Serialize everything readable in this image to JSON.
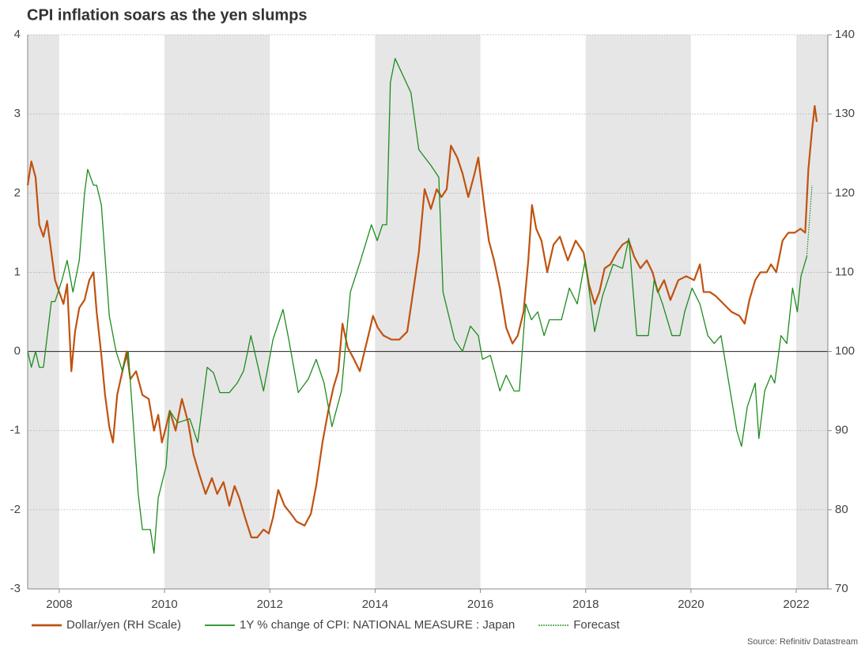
{
  "chart_data": {
    "type": "line",
    "title": "CPI inflation soars as the yen slumps",
    "source": "Source: Refinitiv Datastream",
    "xlim": [
      2007.4,
      2022.6
    ],
    "xticks": [
      2008,
      2010,
      2012,
      2014,
      2016,
      2018,
      2020,
      2022
    ],
    "ylim": [
      -3,
      4
    ],
    "yticks": [
      -3,
      -2,
      -1,
      0,
      1,
      2,
      3,
      4
    ],
    "y2lim": [
      70,
      140
    ],
    "y2ticks": [
      70,
      80,
      90,
      100,
      110,
      120,
      130,
      140
    ],
    "grid": true,
    "shading": true,
    "legend": "bottom",
    "series": [
      {
        "name": "Dollar/yen (RH Scale)",
        "color": "#c0520f",
        "axis": "y2",
        "style": "solid",
        "width": 2.2,
        "x": [
          2007.4,
          2007.47,
          2007.55,
          2007.62,
          2007.7,
          2007.77,
          2007.85,
          2007.92,
          2008.0,
          2008.08,
          2008.15,
          2008.23,
          2008.3,
          2008.38,
          2008.48,
          2008.57,
          2008.65,
          2008.71,
          2008.8,
          2008.87,
          2008.95,
          2009.02,
          2009.1,
          2009.2,
          2009.28,
          2009.35,
          2009.46,
          2009.58,
          2009.7,
          2009.8,
          2009.88,
          2009.95,
          2010.03,
          2010.1,
          2010.21,
          2010.33,
          2010.45,
          2010.55,
          2010.66,
          2010.78,
          2010.9,
          2011.0,
          2011.12,
          2011.23,
          2011.33,
          2011.42,
          2011.53,
          2011.65,
          2011.76,
          2011.88,
          2011.98,
          2012.06,
          2012.16,
          2012.28,
          2012.4,
          2012.51,
          2012.66,
          2012.78,
          2012.88,
          2013.0,
          2013.11,
          2013.21,
          2013.3,
          2013.38,
          2013.48,
          2013.6,
          2013.71,
          2013.78,
          2013.89,
          2013.96,
          2014.05,
          2014.16,
          2014.31,
          2014.46,
          2014.61,
          2014.71,
          2014.83,
          2014.94,
          2015.06,
          2015.17,
          2015.26,
          2015.36,
          2015.44,
          2015.56,
          2015.66,
          2015.77,
          2015.89,
          2015.96,
          2016.07,
          2016.16,
          2016.26,
          2016.37,
          2016.49,
          2016.61,
          2016.71,
          2016.82,
          2016.91,
          2016.98,
          2017.06,
          2017.16,
          2017.27,
          2017.39,
          2017.51,
          2017.66,
          2017.81,
          2017.96,
          2018.06,
          2018.17,
          2018.26,
          2018.36,
          2018.47,
          2018.59,
          2018.7,
          2018.82,
          2018.92,
          2019.04,
          2019.16,
          2019.27,
          2019.37,
          2019.49,
          2019.61,
          2019.76,
          2019.91,
          2020.06,
          2020.17,
          2020.24,
          2020.36,
          2020.47,
          2020.62,
          2020.77,
          2020.92,
          2021.02,
          2021.11,
          2021.22,
          2021.32,
          2021.44,
          2021.52,
          2021.62,
          2021.74,
          2021.85,
          2021.97,
          2022.08,
          2022.17,
          2022.23,
          2022.3,
          2022.35,
          2022.39
        ],
        "values": [
          121,
          124,
          122,
          116,
          114.5,
          116.5,
          112.5,
          109,
          107.5,
          106,
          108.5,
          97.5,
          102.5,
          105.5,
          106.5,
          109,
          110,
          105,
          99.5,
          94.5,
          90.5,
          88.5,
          94.5,
          97.5,
          100,
          96.5,
          97.5,
          94.5,
          94,
          90,
          92,
          88.5,
          90.5,
          92.5,
          90,
          94,
          91,
          87,
          84.5,
          82,
          84,
          82,
          83.5,
          80.5,
          83,
          81.5,
          79,
          76.5,
          76.5,
          77.5,
          77,
          79,
          82.5,
          80.5,
          79.5,
          78.5,
          78,
          79.5,
          83,
          88.5,
          92.5,
          95.5,
          97.5,
          103.5,
          100.5,
          99,
          97.5,
          99.5,
          102.5,
          104.5,
          103,
          102,
          101.5,
          101.5,
          102.5,
          107,
          112.5,
          120.5,
          118,
          120.5,
          119.5,
          120.5,
          126,
          124.5,
          122.5,
          119.5,
          122.5,
          124.5,
          118.5,
          114,
          111.5,
          108,
          103,
          101,
          102,
          105,
          111.5,
          118.5,
          115.5,
          114,
          110,
          113.5,
          114.5,
          111.5,
          114,
          112.5,
          108.5,
          106,
          107.5,
          110.5,
          111,
          112.5,
          113.5,
          114,
          112,
          110.5,
          111.5,
          110,
          107.5,
          109,
          106.5,
          109,
          109.5,
          109,
          111,
          107.5,
          107.5,
          107,
          106,
          105,
          104.5,
          103.5,
          106.5,
          109,
          110,
          110,
          111,
          110,
          114,
          115,
          115,
          115.5,
          115,
          123,
          128,
          131,
          129
        ]
      },
      {
        "name": "1Y % change of CPI: NATIONAL MEASURE : Japan",
        "color": "#1e8c1e",
        "axis": "y",
        "style": "solid",
        "width": 1.3,
        "x": [
          2007.4,
          2007.47,
          2007.55,
          2007.62,
          2007.7,
          2007.85,
          2007.92,
          2008.05,
          2008.15,
          2008.26,
          2008.38,
          2008.48,
          2008.54,
          2008.65,
          2008.71,
          2008.8,
          2008.95,
          2009.08,
          2009.2,
          2009.31,
          2009.4,
          2009.5,
          2009.58,
          2009.73,
          2009.8,
          2009.88,
          2010.03,
          2010.1,
          2010.25,
          2010.48,
          2010.63,
          2010.81,
          2010.93,
          2011.05,
          2011.23,
          2011.38,
          2011.5,
          2011.58,
          2011.64,
          2011.71,
          2011.88,
          2012.06,
          2012.25,
          2012.36,
          2012.54,
          2012.73,
          2012.88,
          2013.03,
          2013.18,
          2013.36,
          2013.53,
          2013.71,
          2013.93,
          2014.04,
          2014.14,
          2014.22,
          2014.29,
          2014.38,
          2014.68,
          2014.83,
          2015.06,
          2015.21,
          2015.29,
          2015.51,
          2015.66,
          2015.81,
          2015.96,
          2016.04,
          2016.19,
          2016.37,
          2016.49,
          2016.64,
          2016.74,
          2016.86,
          2016.97,
          2017.09,
          2017.21,
          2017.31,
          2017.54,
          2017.69,
          2017.84,
          2017.99,
          2018.17,
          2018.32,
          2018.52,
          2018.7,
          2018.82,
          2018.97,
          2019.19,
          2019.3,
          2019.46,
          2019.64,
          2019.79,
          2019.88,
          2020.02,
          2020.17,
          2020.32,
          2020.44,
          2020.57,
          2020.72,
          2020.87,
          2020.96,
          2021.07,
          2021.22,
          2021.29,
          2021.4,
          2021.52,
          2021.59,
          2021.71,
          2021.82,
          2021.93,
          2022.02,
          2022.09,
          2022.2
        ],
        "values": [
          0,
          -0.2,
          0,
          -0.2,
          -0.2,
          0.63,
          0.63,
          0.9,
          1.15,
          0.75,
          1.15,
          2.0,
          2.3,
          2.1,
          2.1,
          1.85,
          0.45,
          0,
          -0.25,
          0,
          -0.85,
          -1.8,
          -2.25,
          -2.25,
          -2.55,
          -1.85,
          -1.45,
          -0.75,
          -0.9,
          -0.85,
          -1.15,
          -0.2,
          -0.27,
          -0.52,
          -0.52,
          -0.4,
          -0.25,
          0,
          0.2,
          0,
          -0.5,
          0.15,
          0.53,
          0.15,
          -0.52,
          -0.35,
          -0.1,
          -0.4,
          -0.95,
          -0.5,
          0.75,
          1.12,
          1.6,
          1.4,
          1.6,
          1.6,
          3.4,
          3.7,
          3.27,
          2.55,
          2.35,
          2.2,
          0.75,
          0.15,
          0,
          0.32,
          0.2,
          -0.1,
          -0.05,
          -0.5,
          -0.3,
          -0.5,
          -0.5,
          0.6,
          0.4,
          0.5,
          0.2,
          0.4,
          0.4,
          0.8,
          0.6,
          1.15,
          0.25,
          0.7,
          1.1,
          1.05,
          1.43,
          0.2,
          0.2,
          0.9,
          0.6,
          0.2,
          0.2,
          0.5,
          0.8,
          0.6,
          0.2,
          0.1,
          0.2,
          -0.4,
          -1.0,
          -1.2,
          -0.7,
          -0.4,
          -1.1,
          -0.5,
          -0.3,
          -0.4,
          0.2,
          0.1,
          0.8,
          0.5,
          0.95,
          1.2
        ]
      },
      {
        "name": "Forecast",
        "color": "#1e8c1e",
        "axis": "y",
        "style": "dotted",
        "width": 1.2,
        "x": [
          2022.2,
          2022.3
        ],
        "values": [
          1.2,
          2.1
        ]
      }
    ]
  }
}
